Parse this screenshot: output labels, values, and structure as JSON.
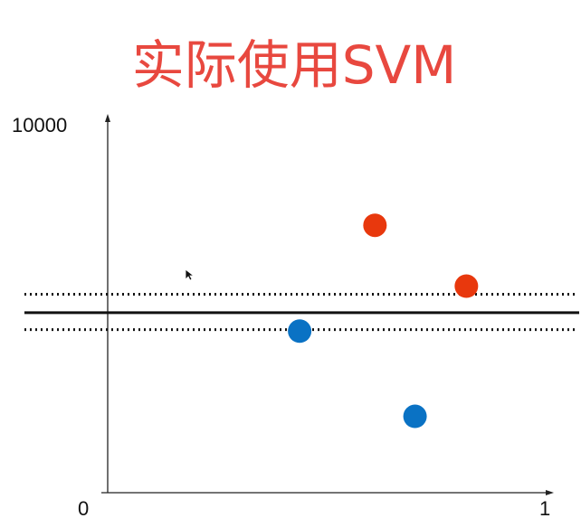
{
  "chart_data": {
    "type": "scatter",
    "title": "实际使用SVM",
    "xlabel": "",
    "ylabel": "",
    "xlim": [
      0,
      1
    ],
    "ylim": [
      0,
      10000
    ],
    "tick_labels": {
      "y_top": "10000",
      "x_origin": "0",
      "x_end": "1"
    },
    "series": [
      {
        "color": "#e8380d",
        "points": [
          {
            "x": 0.614,
            "y": 7250
          },
          {
            "x": 0.824,
            "y": 5600
          }
        ]
      },
      {
        "color": "#0a72c4",
        "points": [
          {
            "x": 0.441,
            "y": 4380
          },
          {
            "x": 0.706,
            "y": 2070
          }
        ]
      }
    ],
    "decision_boundary": {
      "y": 4880,
      "style": "solid",
      "color": "#111111"
    },
    "margins": [
      {
        "y": 5380,
        "style": "dotted",
        "color": "#111111"
      },
      {
        "y": 4420,
        "style": "dotted",
        "color": "#111111"
      }
    ],
    "grid": false,
    "legend": "none",
    "cursor_icon": "mouse-pointer-icon"
  }
}
